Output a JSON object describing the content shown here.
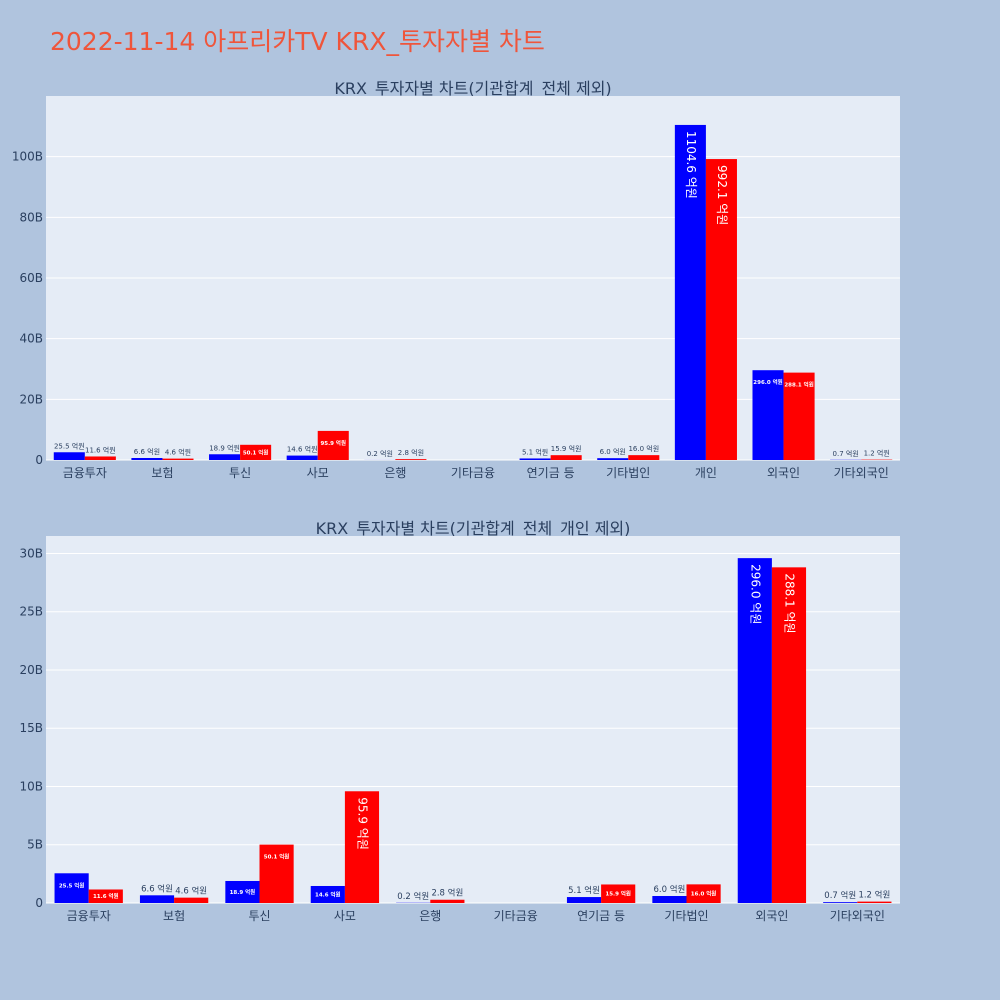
{
  "page": {
    "title": "2022-11-14 아프리카TV KRX_투자자별 차트",
    "background": "#b0c4de",
    "title_color": "#ef553b"
  },
  "chart_data": [
    {
      "type": "bar",
      "title": "KRX_투자자별 차트(기관합계_전체 제외)",
      "categories": [
        "금융투자",
        "보험",
        "투신",
        "사모",
        "은행",
        "기타금융",
        "연기금 등",
        "기타법인",
        "개인",
        "외국인",
        "기타외국인"
      ],
      "ylim": [
        0,
        120
      ],
      "yticks": [
        0,
        20,
        40,
        60,
        80,
        100
      ],
      "ytick_labels": [
        "0",
        "20B",
        "40B",
        "60B",
        "80B",
        "100B"
      ],
      "grid": true,
      "series": [
        {
          "color": "#0000ff",
          "values": [
            2.55,
            0.66,
            1.89,
            1.46,
            0.02,
            0,
            0.51,
            0.6,
            110.46,
            29.6,
            0.07
          ],
          "labels": [
            "25.5 억원",
            "6.6 억원",
            "18.9 억원",
            "14.6 억원",
            "0.2 억원",
            "",
            "5.1 억원",
            "6.0 억원",
            "1104.6 억원",
            "296.0 억원",
            "0.7 억원"
          ]
        },
        {
          "color": "#ff0000",
          "values": [
            1.16,
            0.46,
            5.01,
            9.59,
            0.28,
            0,
            1.59,
            1.6,
            99.21,
            28.81,
            0.12
          ],
          "labels": [
            "11.6 억원",
            "4.6 억원",
            "50.1 억원",
            "95.9 억원",
            "2.8 억원",
            "",
            "15.9 억원",
            "16.0 억원",
            "992.1 억원",
            "288.1 억원",
            "1.2 억원"
          ]
        }
      ]
    },
    {
      "type": "bar",
      "title": "KRX_투자자별 차트(기관합계_전체_개인 제외)",
      "categories": [
        "금융투자",
        "보험",
        "투신",
        "사모",
        "은행",
        "기타금융",
        "연기금 등",
        "기타법인",
        "외국인",
        "기타외국인"
      ],
      "ylim": [
        0,
        31.5
      ],
      "yticks": [
        0,
        5,
        10,
        15,
        20,
        25,
        30
      ],
      "ytick_labels": [
        "0",
        "5B",
        "10B",
        "15B",
        "20B",
        "25B",
        "30B"
      ],
      "grid": true,
      "series": [
        {
          "color": "#0000ff",
          "values": [
            2.55,
            0.66,
            1.89,
            1.46,
            0.02,
            0,
            0.51,
            0.6,
            29.6,
            0.07
          ],
          "labels": [
            "25.5 억원",
            "6.6 억원",
            "18.9 억원",
            "14.6 억원",
            "0.2 억원",
            "",
            "5.1 억원",
            "6.0 억원",
            "296.0 억원",
            "0.7 억원"
          ]
        },
        {
          "color": "#ff0000",
          "values": [
            1.16,
            0.46,
            5.01,
            9.59,
            0.28,
            0,
            1.59,
            1.6,
            28.81,
            0.12
          ],
          "labels": [
            "11.6 억원",
            "4.6 억원",
            "50.1 억원",
            "95.9 억원",
            "2.8 억원",
            "",
            "15.9 억원",
            "16.0 억원",
            "288.1 억원",
            "1.2 억원"
          ]
        }
      ]
    }
  ]
}
